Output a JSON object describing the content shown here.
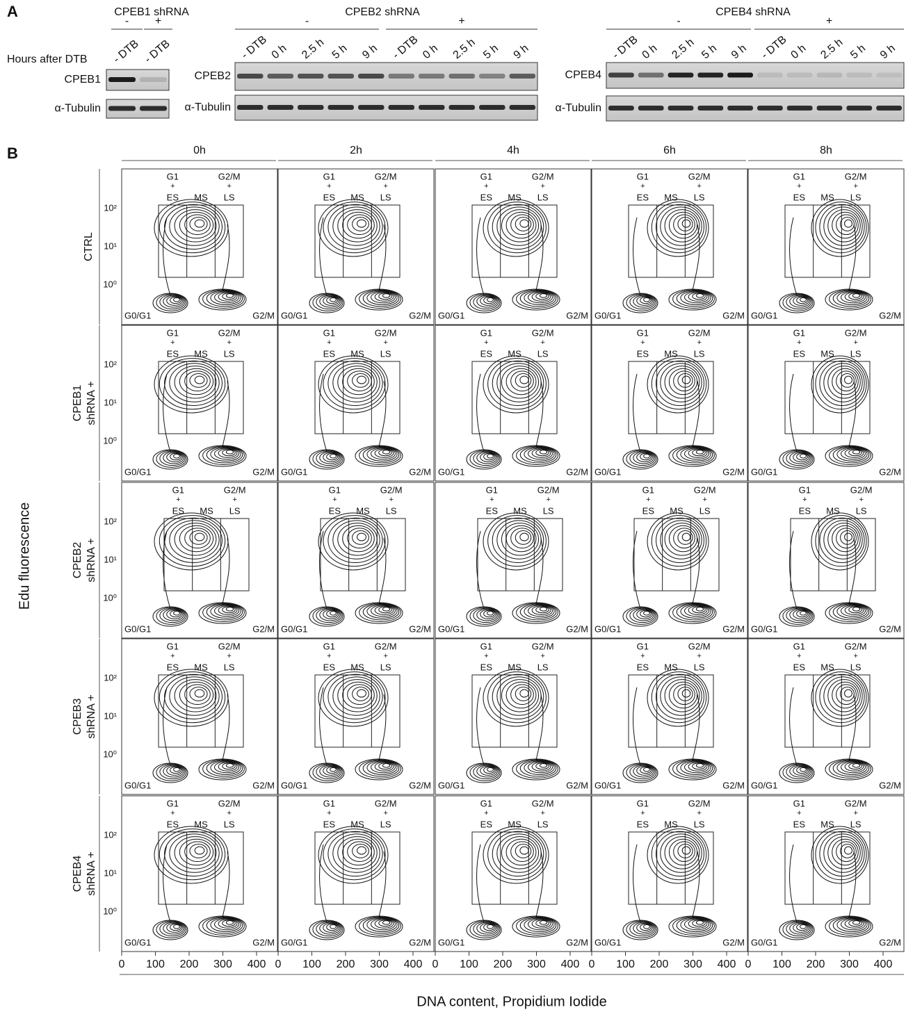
{
  "panel_a": {
    "label": "A",
    "hours_label": "Hours after DTB",
    "blots": [
      {
        "title": "CPEB1 shRNA",
        "groups": [
          "-",
          "+"
        ],
        "lanes": [
          "- DTB",
          "- DTB"
        ],
        "protein": "CPEB1",
        "loading": "α-Tubulin"
      },
      {
        "title": "CPEB2 shRNA",
        "groups": [
          "-",
          "+"
        ],
        "lanes": [
          "- DTB",
          "0 h",
          "2.5 h",
          "5 h",
          "9 h",
          "- DTB",
          "0 h",
          "2.5 h",
          "5 h",
          "9 h"
        ],
        "protein": "CPEB2",
        "loading": "α-Tubulin"
      },
      {
        "title": "CPEB4 shRNA",
        "groups": [
          "-",
          "+"
        ],
        "lanes": [
          "- DTB",
          "0 h",
          "2.5 h",
          "5 h",
          "9 h",
          "- DTB",
          "0 h",
          "2.5 h",
          "5 h",
          "9 h"
        ],
        "protein": "CPEB4",
        "loading": "α-Tubulin"
      }
    ]
  },
  "panel_b": {
    "label": "B",
    "y_axis_title": "Edu fluorescence",
    "x_axis_title": "DNA content, Propidium Iodide",
    "timepoints": [
      "0h",
      "2h",
      "4h",
      "6h",
      "8h"
    ],
    "rows": [
      [
        "CTRL"
      ],
      [
        "CPEB1",
        "shRNA +"
      ],
      [
        "CPEB2",
        "shRNA +"
      ],
      [
        "CPEB3",
        "shRNA +"
      ],
      [
        "CPEB4",
        "shRNA +"
      ]
    ],
    "y_ticks": [
      "10²",
      "10¹",
      "10⁰"
    ],
    "x_ticks": [
      "0",
      "100",
      "200",
      "300",
      "400"
    ],
    "gates": {
      "g1": "G1",
      "plus": "+",
      "es": "ES",
      "ms": "MS",
      "g2m": "G2/M",
      "ls": "LS"
    },
    "corners": {
      "left": "G0/G1",
      "right": "G2/M"
    }
  }
}
